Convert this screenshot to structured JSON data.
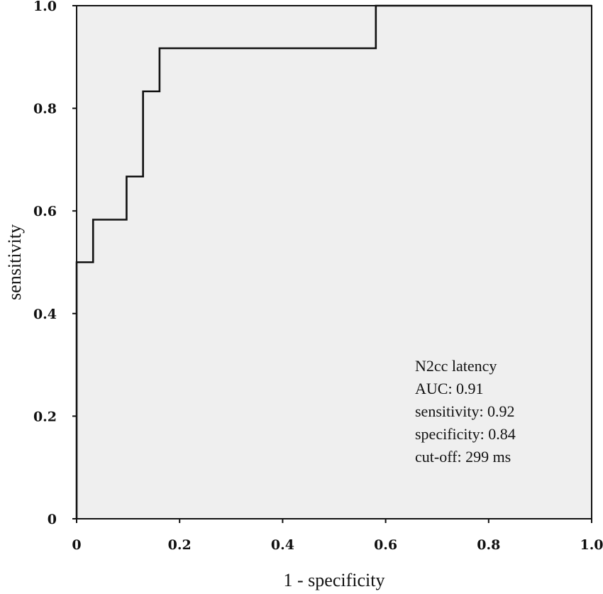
{
  "chart_data": {
    "type": "line",
    "title": "",
    "xlabel": "1 - specificity",
    "ylabel": "sensitivity",
    "xlim": [
      0,
      1
    ],
    "ylim": [
      0,
      1
    ],
    "grid": false,
    "plot_background": "#efefef",
    "line_color": "#111111",
    "x_ticks": [
      {
        "value": 0,
        "label": "0"
      },
      {
        "value": 0.2,
        "label": "0.2"
      },
      {
        "value": 0.4,
        "label": "0.4"
      },
      {
        "value": 0.6,
        "label": "0.6"
      },
      {
        "value": 0.8,
        "label": "0.8"
      },
      {
        "value": 1.0,
        "label": "1.0"
      }
    ],
    "y_ticks": [
      {
        "value": 0,
        "label": "0"
      },
      {
        "value": 0.2,
        "label": "0.2"
      },
      {
        "value": 0.4,
        "label": "0.4"
      },
      {
        "value": 0.6,
        "label": "0.6"
      },
      {
        "value": 0.8,
        "label": "0.8"
      },
      {
        "value": 1.0,
        "label": "1.0"
      }
    ],
    "series": [
      {
        "step": true,
        "x": [
          0,
          0,
          0.032,
          0.032,
          0.097,
          0.097,
          0.129,
          0.129,
          0.161,
          0.161,
          0.581,
          0.581,
          1.0
        ],
        "y": [
          0,
          0.5,
          0.5,
          0.583,
          0.583,
          0.667,
          0.667,
          0.833,
          0.833,
          0.917,
          0.917,
          1.0,
          1.0
        ]
      }
    ],
    "annotation": {
      "placement": "bottom-right",
      "lines": [
        "N2cc latency",
        "AUC: 0.91",
        "sensitivity: 0.92",
        "specificity: 0.84",
        "cut-off: 299 ms"
      ]
    }
  }
}
